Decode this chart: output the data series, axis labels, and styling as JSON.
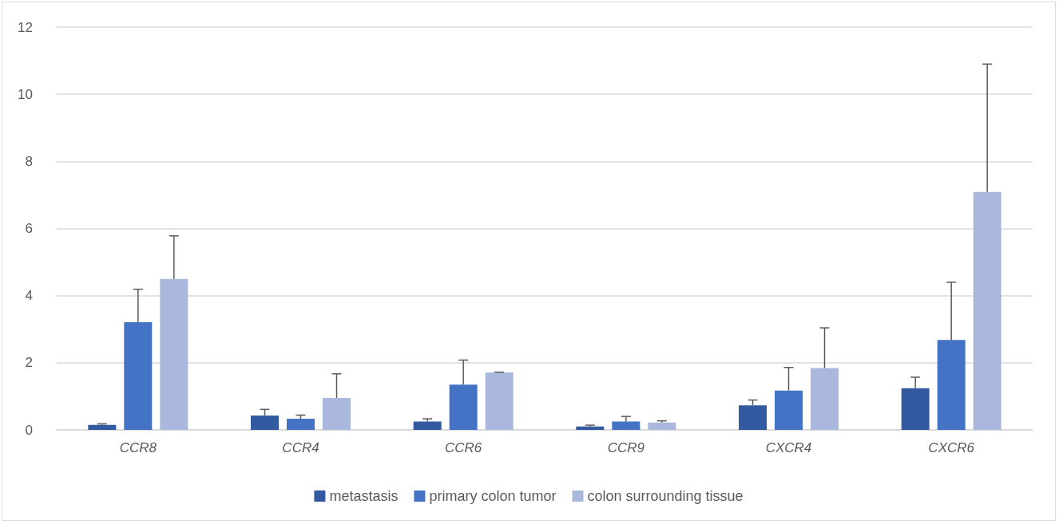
{
  "chart_data": {
    "type": "bar",
    "categories": [
      "CCR8",
      "CCR4",
      "CCR6",
      "CCR9",
      "CXCR4",
      "CXCR6"
    ],
    "series": [
      {
        "name": "metastasis",
        "color": "#335aa1",
        "values": [
          0.15,
          0.43,
          0.25,
          0.1,
          0.73,
          1.24
        ],
        "errors": [
          [
            0.15,
            0.18
          ],
          [
            0.43,
            0.61
          ],
          [
            0.25,
            0.33
          ],
          [
            0.1,
            0.14
          ],
          [
            0.73,
            0.89
          ],
          [
            1.24,
            1.57
          ]
        ]
      },
      {
        "name": "primary colon tumor",
        "color": "#4472c4",
        "values": [
          3.21,
          0.33,
          1.35,
          0.25,
          1.17,
          2.68
        ],
        "errors": [
          [
            3.21,
            4.19
          ],
          [
            0.33,
            0.44
          ],
          [
            1.35,
            2.08
          ],
          [
            0.25,
            0.4
          ],
          [
            1.17,
            1.86
          ],
          [
            2.68,
            4.4
          ]
        ]
      },
      {
        "name": "colon surrounding tissue",
        "color": "#a9b8dc",
        "values": [
          4.5,
          0.95,
          1.71,
          0.22,
          1.84,
          7.09
        ],
        "errors": [
          [
            4.5,
            5.78
          ],
          [
            0.95,
            1.67
          ],
          [
            1.71,
            1.72
          ],
          [
            0.22,
            0.27
          ],
          [
            1.84,
            3.04
          ],
          [
            7.09,
            10.9
          ]
        ]
      }
    ],
    "ylim": [
      0,
      12
    ],
    "yticks": [
      0,
      2,
      4,
      6,
      8,
      10,
      12
    ],
    "grid": "y",
    "legend": "bottom"
  }
}
